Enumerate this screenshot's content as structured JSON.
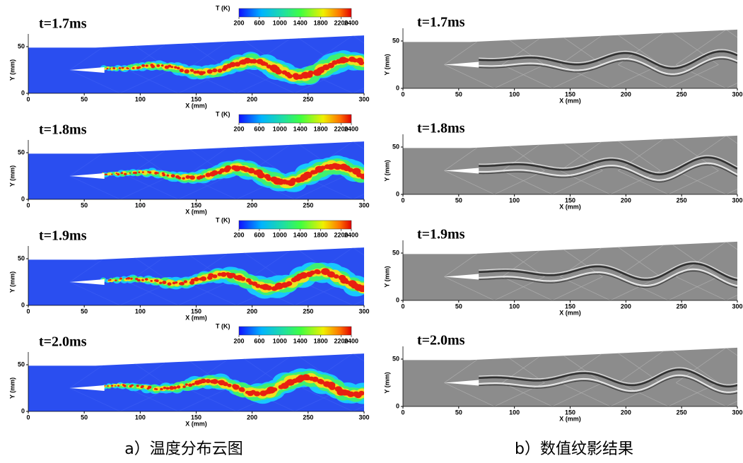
{
  "axes": {
    "xlabel": "X (mm)",
    "ylabel": "Y (mm)",
    "xticks": [
      0,
      50,
      100,
      150,
      200,
      250,
      300
    ],
    "yticks": [
      0,
      50
    ]
  },
  "columns": [
    {
      "caption": "a）温度分布云图",
      "colorbar": {
        "title": "T (K)",
        "ticks": [
          200,
          600,
          1000,
          1400,
          1800,
          2200,
          2400
        ]
      },
      "panels": [
        {
          "time": "t=1.7ms"
        },
        {
          "time": "t=1.8ms"
        },
        {
          "time": "t=1.9ms"
        },
        {
          "time": "t=2.0ms"
        }
      ]
    },
    {
      "caption": "b）数值纹影结果",
      "panels": [
        {
          "time": "t=1.7ms"
        },
        {
          "time": "t=1.8ms"
        },
        {
          "time": "t=1.9ms"
        },
        {
          "time": "t=2.0ms"
        }
      ]
    }
  ]
}
